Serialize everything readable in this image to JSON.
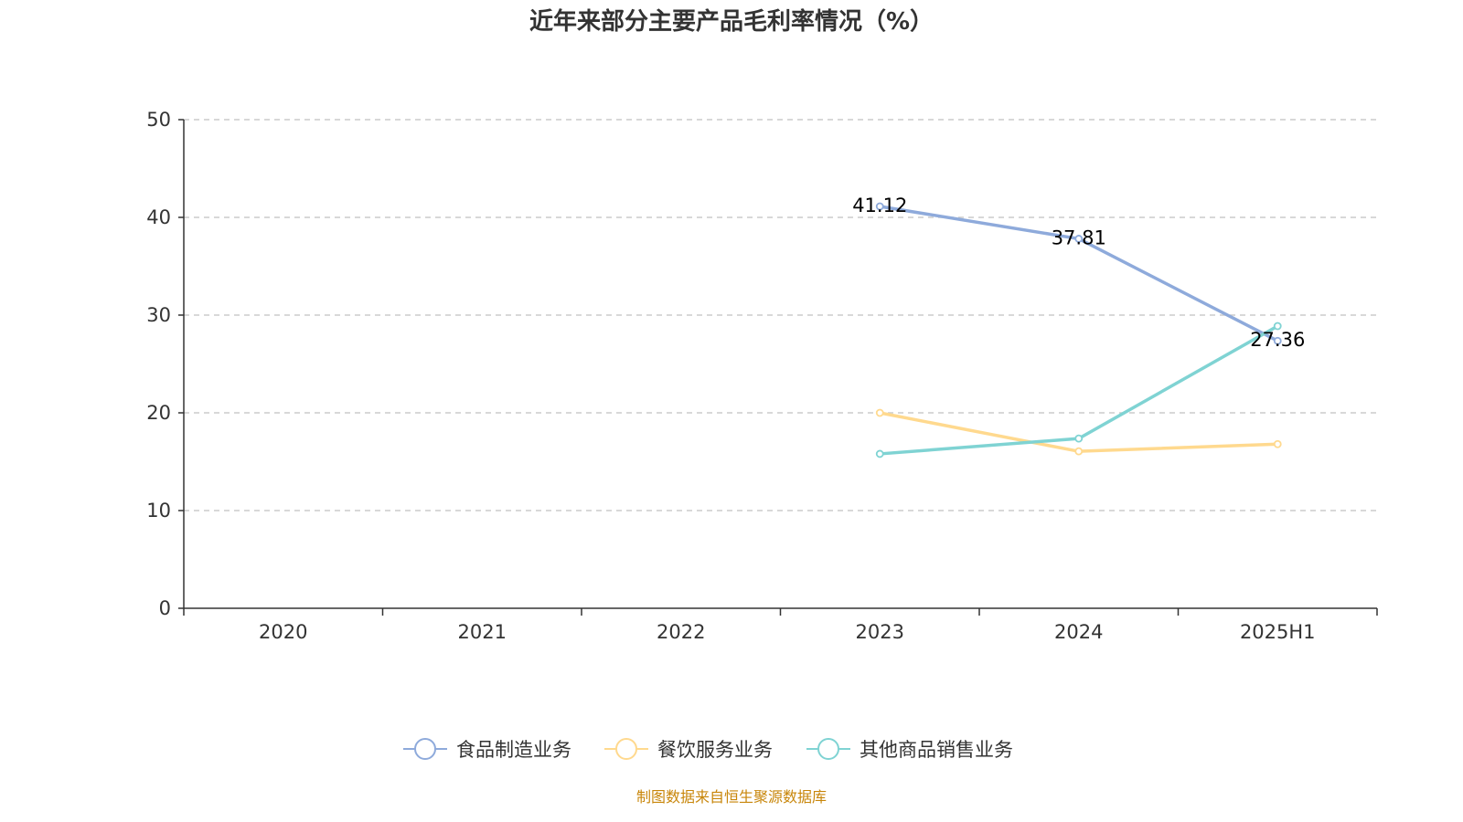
{
  "chart_data": {
    "type": "line",
    "title": "近年来部分主要产品毛利率情况（%）",
    "categories": [
      "2020",
      "2021",
      "2022",
      "2023",
      "2024",
      "2025H1"
    ],
    "ylim": [
      0,
      50
    ],
    "yticks": [
      "0",
      "10",
      "20",
      "30",
      "40",
      "50"
    ],
    "grid": true,
    "legend_position": "bottom",
    "series": [
      {
        "name": "食品制造业务",
        "color": "#8eaadb",
        "values": [
          null,
          null,
          null,
          41.12,
          37.81,
          27.36
        ],
        "labels": [
          "",
          "",
          "",
          "41.12",
          "37.81",
          "27.36"
        ]
      },
      {
        "name": "餐饮服务业务",
        "color": "#ffd98e",
        "values": [
          null,
          null,
          null,
          20.0,
          16.06,
          16.8
        ],
        "labels": [
          "",
          "",
          "",
          "",
          "",
          ""
        ]
      },
      {
        "name": "其他商品销售业务",
        "color": "#7fd3d3",
        "values": [
          null,
          null,
          null,
          15.8,
          17.37,
          28.88
        ],
        "labels": [
          "",
          "",
          "",
          "",
          "",
          ""
        ]
      }
    ]
  },
  "source": "制图数据来自恒生聚源数据库"
}
